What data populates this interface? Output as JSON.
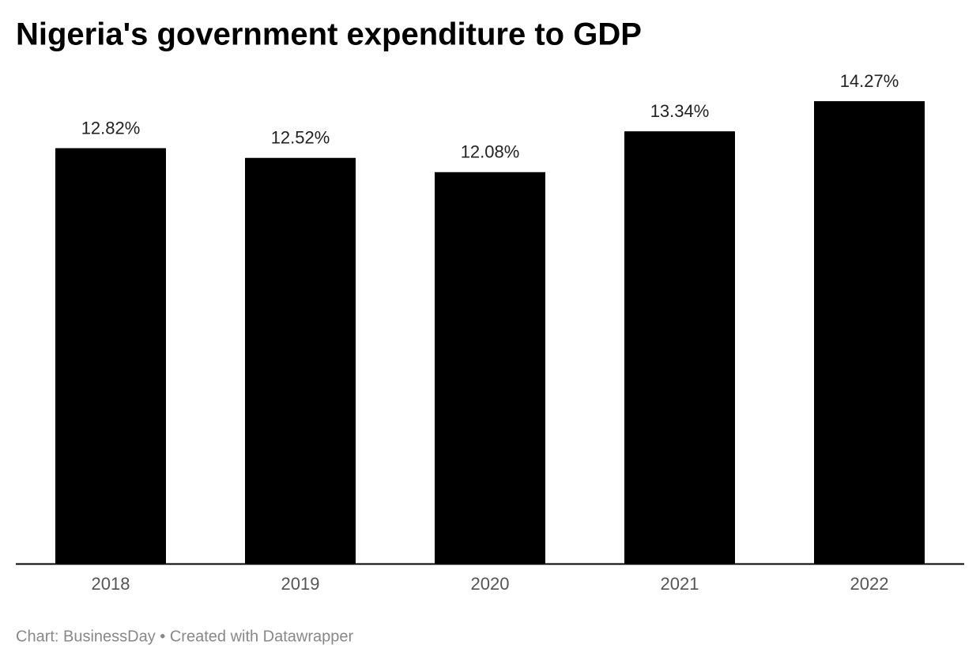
{
  "chart_data": {
    "type": "bar",
    "title": "Nigeria's government expenditure to GDP",
    "categories": [
      "2018",
      "2019",
      "2020",
      "2021",
      "2022"
    ],
    "values": [
      12.82,
      12.52,
      12.08,
      13.34,
      14.27
    ],
    "value_labels": [
      "12.82%",
      "12.52%",
      "12.08%",
      "13.34%",
      "14.27%"
    ],
    "color": "#000000",
    "footer": "Chart: BusinessDay • Created with Datawrapper"
  }
}
